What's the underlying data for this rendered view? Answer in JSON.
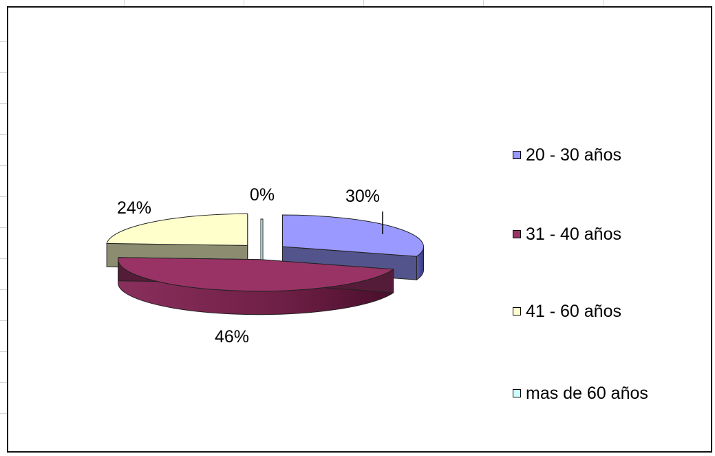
{
  "chart_data": {
    "type": "pie",
    "style": "3d-exploded",
    "title": "",
    "legend_position": "right",
    "categories": [
      "20 - 30 años",
      "31 - 40 años",
      "41 - 60 años",
      "mas de 60 años"
    ],
    "values": [
      30,
      46,
      24,
      0
    ],
    "data_labels": [
      "30%",
      "46%",
      "24%",
      "0%"
    ],
    "colors": [
      "#9999ff",
      "#993366",
      "#ffffcc",
      "#ccffff"
    ]
  }
}
